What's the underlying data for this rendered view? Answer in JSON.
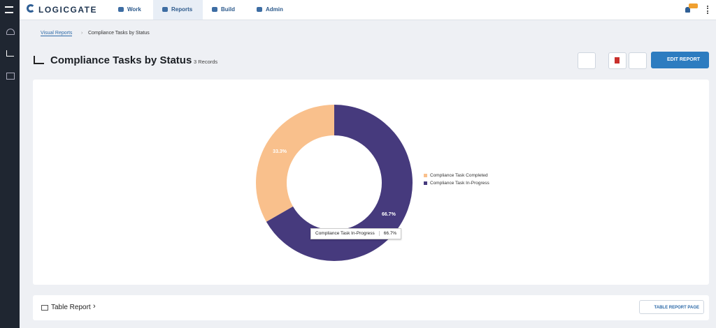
{
  "nav": {
    "brand": "LOGICGATE",
    "items": [
      "Work",
      "Reports",
      "Build",
      "Admin"
    ]
  },
  "breadcrumb": [
    "Visual Reports",
    "Compliance Tasks by Status"
  ],
  "header": {
    "title": "Compliance Tasks by Status",
    "records": "3 Records",
    "edit_button": "EDIT REPORT"
  },
  "chart_data": {
    "type": "donut",
    "categories": [
      "Compliance Task Completed",
      "Compliance Task In-Progress"
    ],
    "values": [
      33.3,
      66.7
    ],
    "value_labels": [
      "33.3%",
      "66.7%"
    ],
    "colors": [
      "#f9c08c",
      "#463a7d"
    ],
    "legend": "right"
  },
  "table_section": {
    "title": "Table Report",
    "button": "TABLE REPORT PAGE"
  }
}
